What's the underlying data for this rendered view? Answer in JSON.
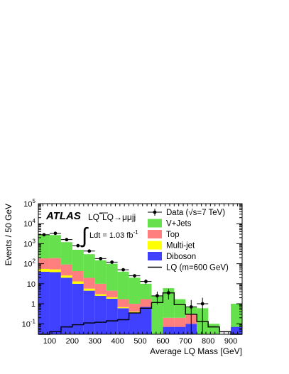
{
  "chart_data": {
    "type": "bar",
    "stacked": true,
    "log_y": true,
    "xlabel": "Average LQ Mass [GeV]",
    "ylabel": "Events / 50 GeV",
    "xlim": [
      50,
      950
    ],
    "ylim": [
      0.03,
      100000
    ],
    "bin_edges": [
      50,
      100,
      150,
      200,
      250,
      300,
      350,
      400,
      450,
      500,
      550,
      600,
      650,
      700,
      750,
      800,
      850,
      900,
      950
    ],
    "x_ticks": [
      100,
      200,
      300,
      400,
      500,
      600,
      700,
      800,
      900
    ],
    "y_ticks": [
      {
        "value": 0.1,
        "label": "10",
        "exp": "-1"
      },
      {
        "value": 1,
        "label": "1",
        "exp": ""
      },
      {
        "value": 10,
        "label": "10",
        "exp": ""
      },
      {
        "value": 100,
        "label": "10",
        "exp": "2"
      },
      {
        "value": 1000,
        "label": "10",
        "exp": "3"
      },
      {
        "value": 10000,
        "label": "10",
        "exp": "4"
      },
      {
        "value": 100000,
        "label": "10",
        "exp": "5"
      }
    ],
    "series": [
      {
        "name": "Diboson",
        "color": "#4040ff",
        "values": [
          40,
          38,
          20,
          10,
          4.5,
          2.5,
          1.8,
          0.6,
          0.35,
          0.7,
          0,
          0.07,
          0.07,
          0.1,
          0,
          0,
          0,
          0.07
        ]
      },
      {
        "name": "Multi-jet",
        "color": "#ffff00",
        "values": [
          15,
          14,
          6,
          3,
          1.2,
          0.5,
          0.3,
          0.08,
          0.05,
          0,
          0,
          0,
          0,
          0,
          0,
          0,
          0,
          0
        ]
      },
      {
        "name": "Top",
        "color": "#ff7f7f",
        "values": [
          130,
          140,
          66,
          30,
          14,
          7,
          2.4,
          1.02,
          0.6,
          1.0,
          0,
          0.13,
          0.13,
          0.2,
          0,
          0,
          0,
          0
        ]
      },
      {
        "name": "V+Jets",
        "color": "#66e04c",
        "values": [
          2615,
          2508,
          1108,
          457,
          280,
          140,
          95.5,
          38.3,
          19,
          8.3,
          2.5,
          5.8,
          1.5,
          0.4,
          0.6,
          0.1,
          0,
          0.93
        ]
      }
    ],
    "signal": {
      "name": "LQ (m=600 GeV)",
      "color": "#000000",
      "values": [
        0.03,
        0.04,
        0.07,
        0.09,
        0.11,
        0.12,
        0.14,
        0.16,
        0.35,
        0.6,
        1.15,
        3.5,
        0.9,
        0.3,
        0.13,
        0.07,
        0.04,
        0.03
      ]
    },
    "data": {
      "name": "Data (√s=7 TeV)",
      "x": [
        75,
        125,
        175,
        225,
        275,
        325,
        375,
        425,
        475,
        525,
        575,
        625,
        675,
        725,
        775,
        825,
        875,
        925
      ],
      "y": [
        2800,
        3300,
        1600,
        800,
        430,
        180,
        120,
        50,
        25,
        13,
        2.5,
        3.5,
        0,
        0.7,
        1,
        0,
        0,
        0
      ]
    },
    "annotations": {
      "experiment": "ATLAS",
      "process": "LQ‾LQ→μμjj",
      "lumi": "Ldt = 1.03 fb",
      "lumi_exp": "-1"
    },
    "legend": {
      "position": "top-right",
      "labels": [
        "Data (√s=7 TeV)",
        "V+Jets",
        "Top",
        "Multi-jet",
        "Diboson",
        "LQ (m=600 GeV)"
      ]
    }
  }
}
